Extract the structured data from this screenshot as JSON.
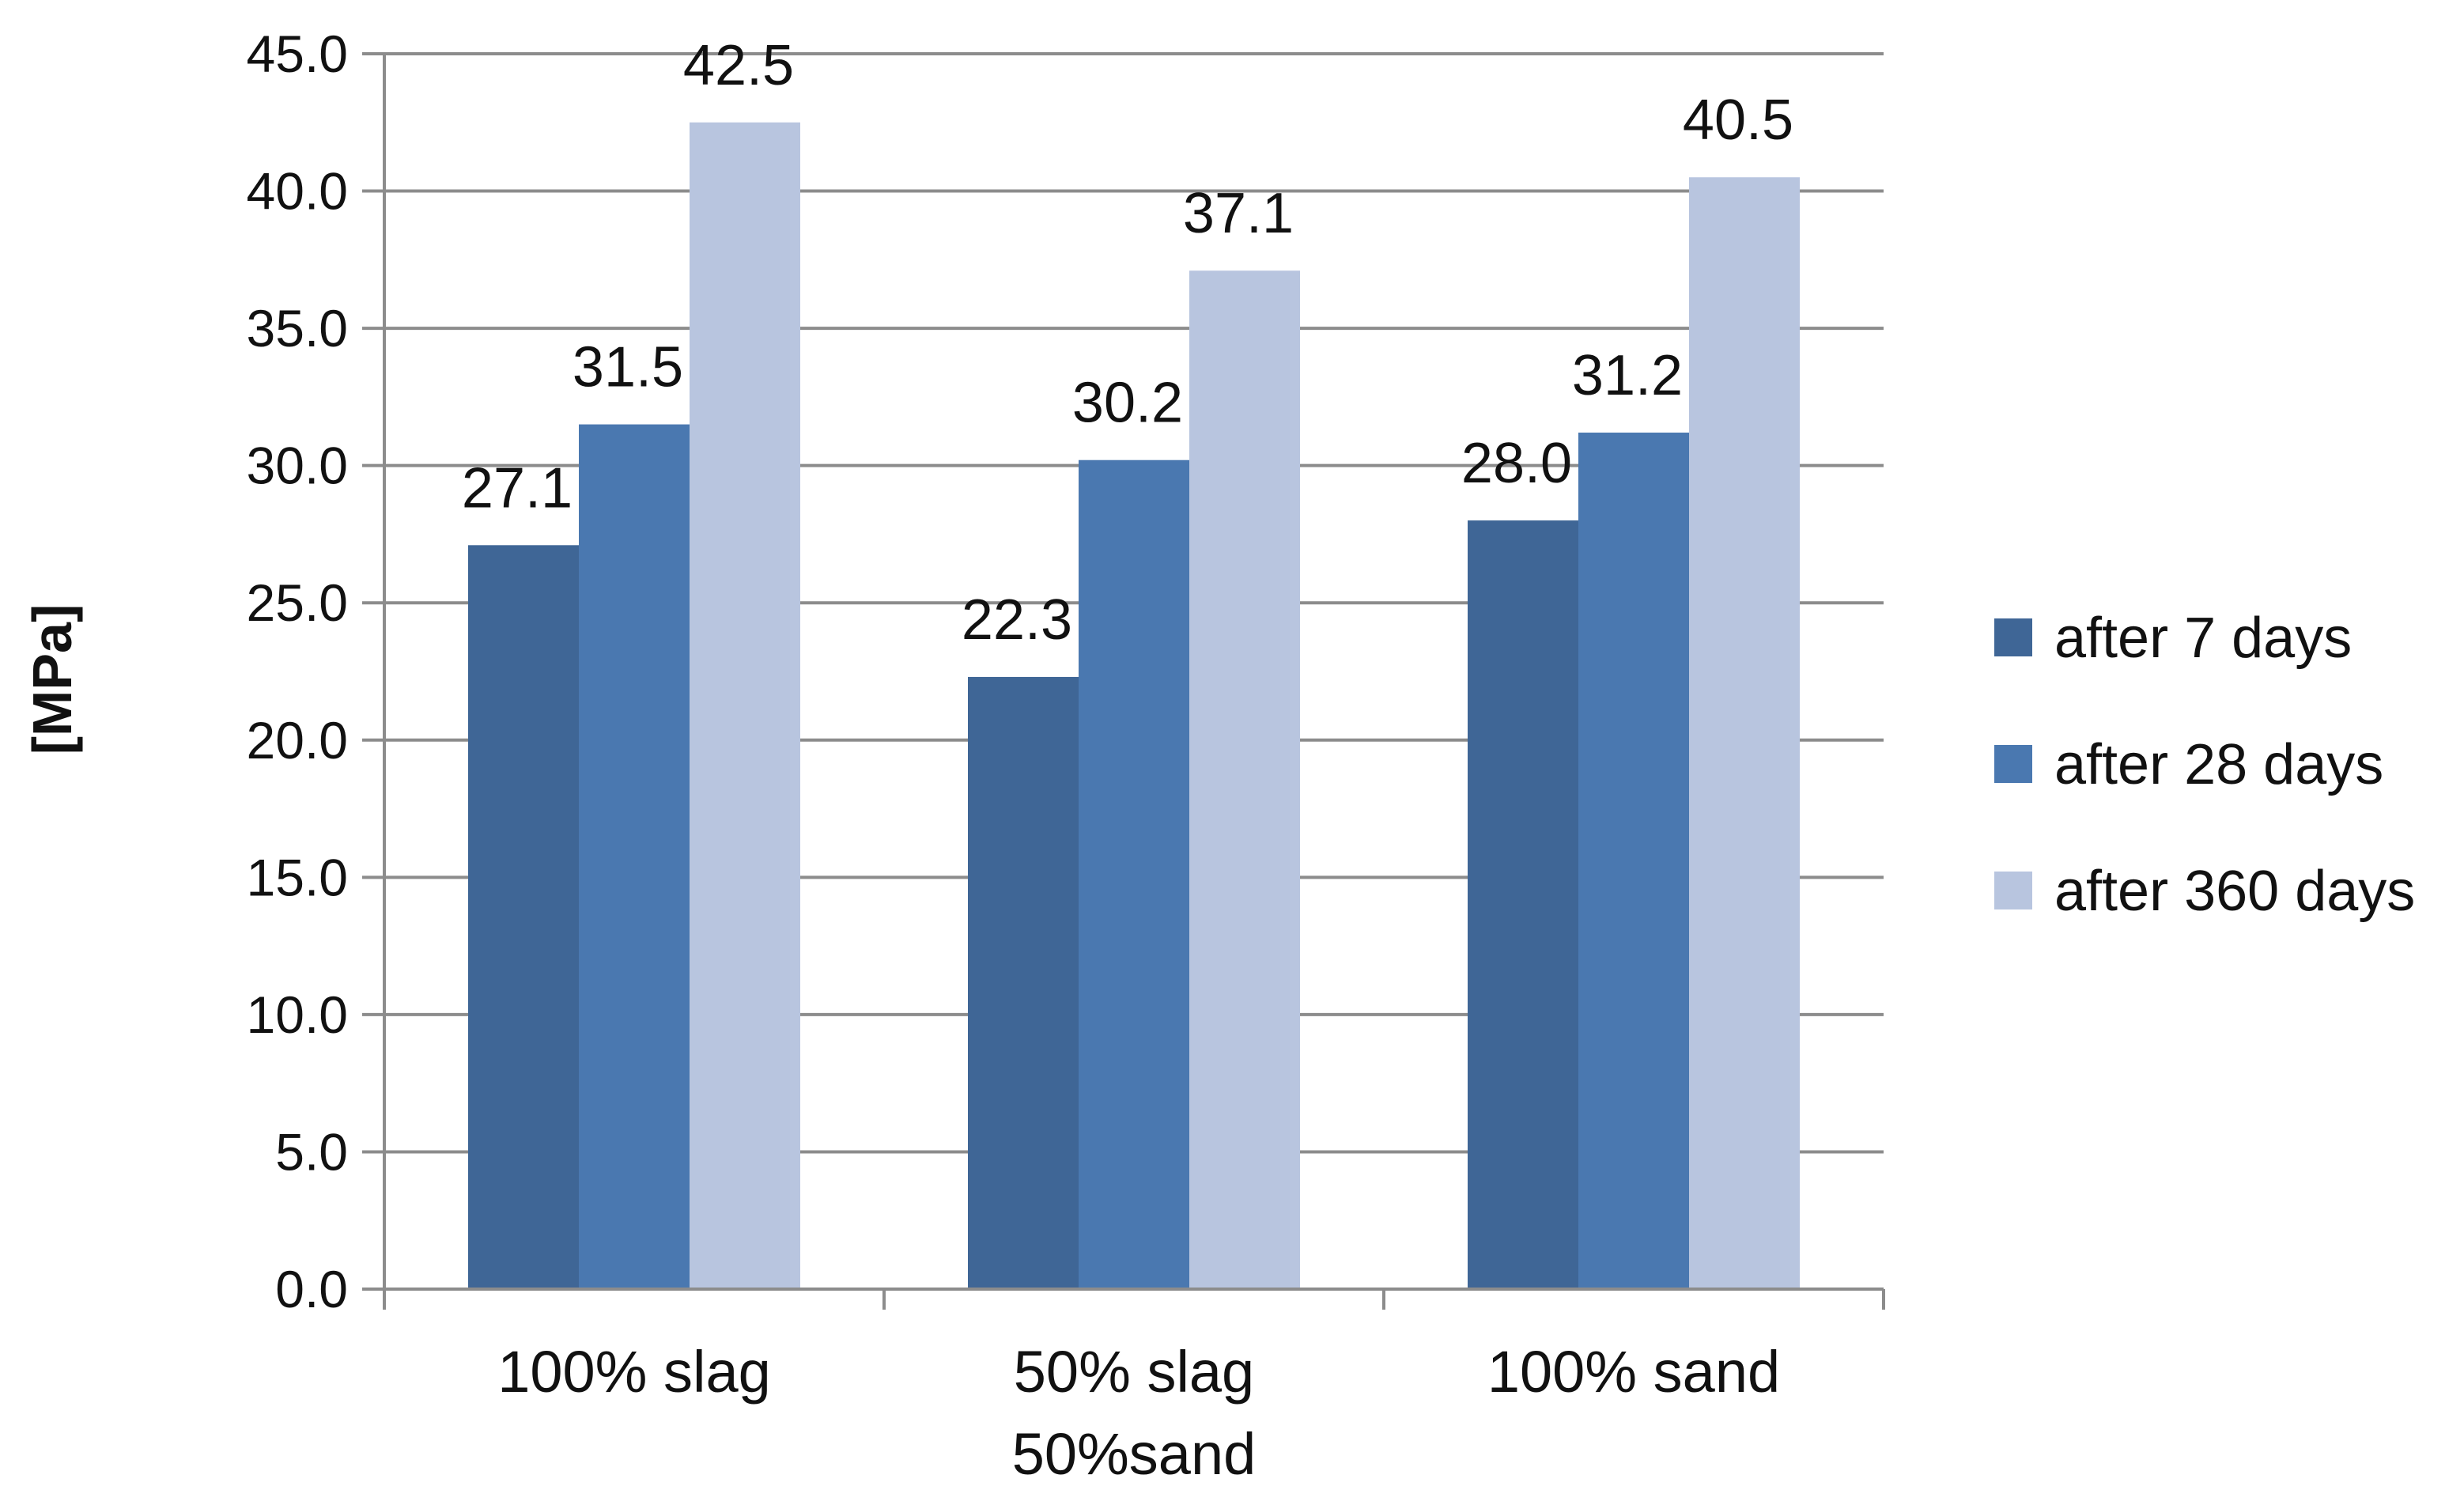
{
  "chart_data": {
    "type": "bar",
    "title": "",
    "xlabel": "",
    "ylabel": "[MPa]",
    "ylim": [
      0,
      45
    ],
    "ytick_step": 5,
    "ytick_decimals": 1,
    "grid": true,
    "legend_position": "right",
    "categories": [
      [
        "100% slag"
      ],
      [
        "50% slag",
        "50%sand"
      ],
      [
        "100% sand"
      ]
    ],
    "series": [
      {
        "name": "after 7 days",
        "color": "#3f6696",
        "values": [
          27.1,
          22.3,
          28.0
        ]
      },
      {
        "name": "after 28 days",
        "color": "#4a78b0",
        "values": [
          31.5,
          30.2,
          31.2
        ]
      },
      {
        "name": "after 360 days",
        "color": "#b8c5df",
        "values": [
          42.5,
          37.1,
          40.5
        ]
      }
    ],
    "data_label_decimals": 1
  }
}
